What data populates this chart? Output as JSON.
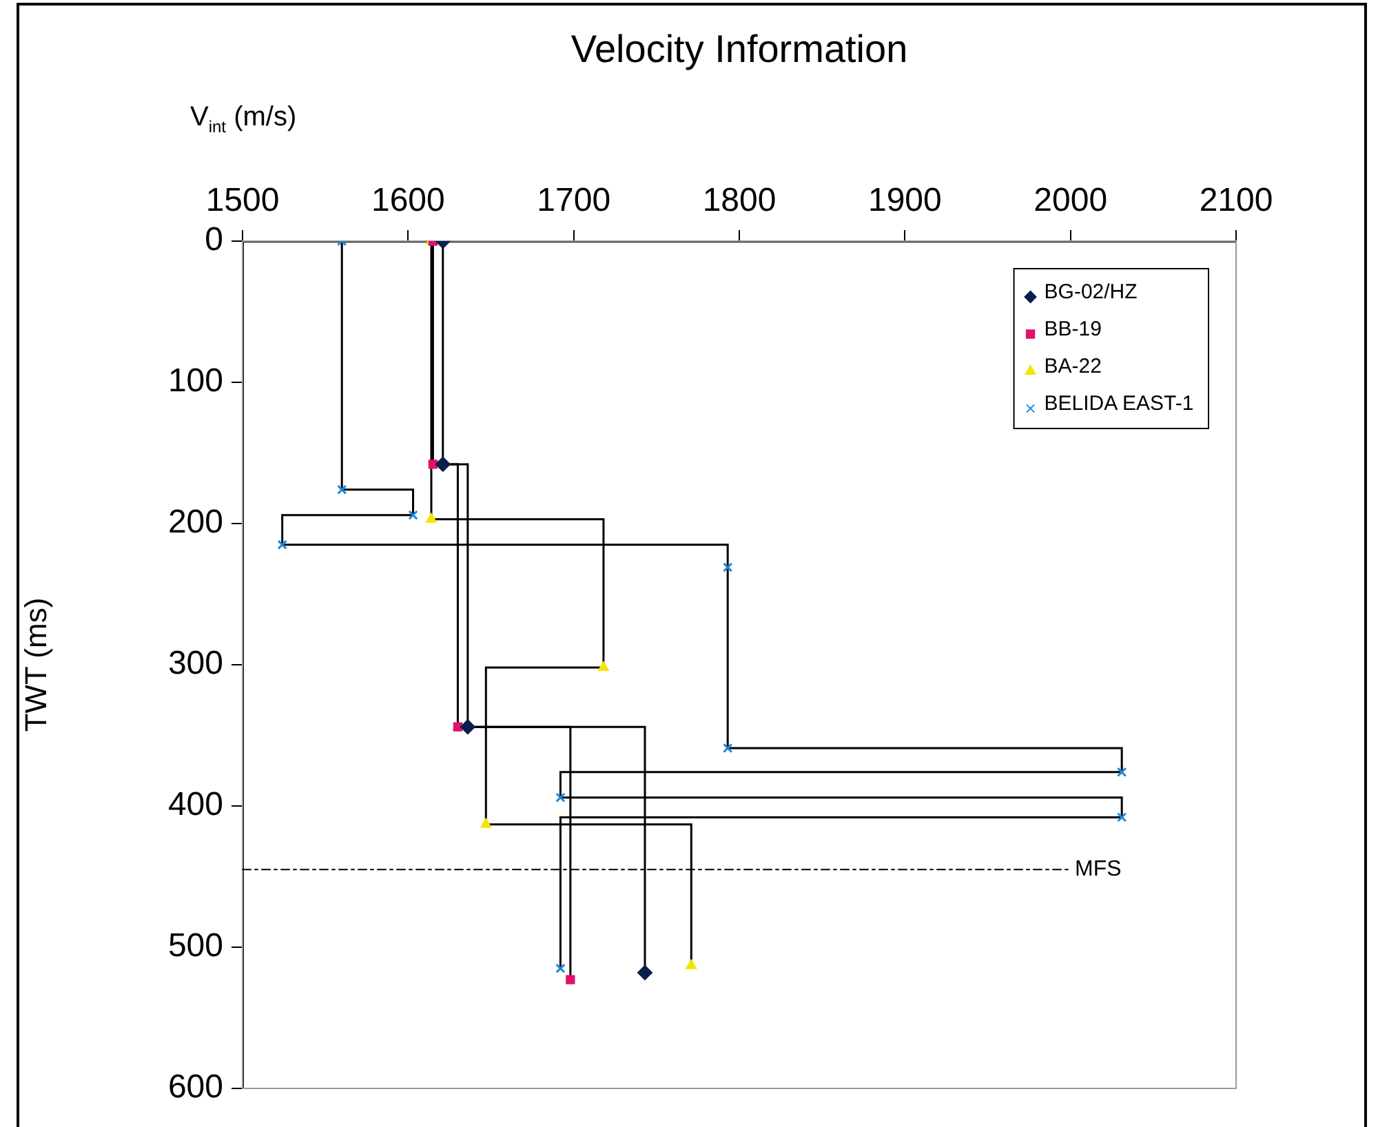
{
  "chart_data": {
    "type": "step",
    "title": "Velocity Information",
    "xlabel": "V$_{int}$ (m/s)",
    "ylabel": "TWT (ms)",
    "xlim": [
      1500,
      2100
    ],
    "xticks": [
      1500,
      1600,
      1700,
      1800,
      1900,
      2000,
      2100
    ],
    "ylim": [
      600,
      0
    ],
    "yticks": [
      0,
      100,
      200,
      300,
      400,
      500,
      600
    ],
    "grid": false,
    "legend": "top right",
    "series": [
      {
        "name": "BG-02/HZ",
        "color": "#000000",
        "colors": [
          "#0b1f4f",
          "#0b1f4f",
          "#0b1f4f",
          "#0b1f4f"
        ],
        "marker": "diamond",
        "x": [
          1621,
          1621,
          1636,
          1743
        ],
        "values": [
          0,
          158,
          344,
          518
        ]
      },
      {
        "name": "BB-19",
        "color": "#000000",
        "colors": [
          "#e0106e",
          "#e0106e",
          "#e0106e",
          "#e0106e"
        ],
        "marker": "square",
        "x": [
          1615,
          1615,
          1630,
          1698
        ],
        "values": [
          0,
          158,
          344,
          523
        ]
      },
      {
        "name": "BA-22",
        "color": "#000000",
        "colors": [
          "#f5e400",
          "#f5e400",
          "#f5e400",
          "#f5e400",
          "#f5e400"
        ],
        "marker": "triangle",
        "x": [
          1614,
          1614,
          1718,
          1647,
          1771
        ],
        "values": [
          0,
          197,
          302,
          413,
          513
        ]
      },
      {
        "name": "BELIDA EAST-1",
        "color": "#000000",
        "colors": [
          "#1e88d6",
          "#1e88d6",
          "#1e88d6",
          "#1e88d6",
          "#1e88d6",
          "#1e88d6",
          "#1e88d6",
          "#1e88d6",
          "#1e88d6",
          "#1e88d6"
        ],
        "marker": "cross",
        "x": [
          1560,
          1560,
          1603,
          1524,
          1793,
          1793,
          2031,
          1692,
          2031,
          1692
        ],
        "values": [
          0,
          176,
          194,
          215,
          231,
          359,
          376,
          394,
          408,
          515
        ]
      }
    ],
    "ref_lines": [
      {
        "axis": "y",
        "value": 445,
        "label": "MFS",
        "line_style": "dashdot"
      }
    ]
  }
}
